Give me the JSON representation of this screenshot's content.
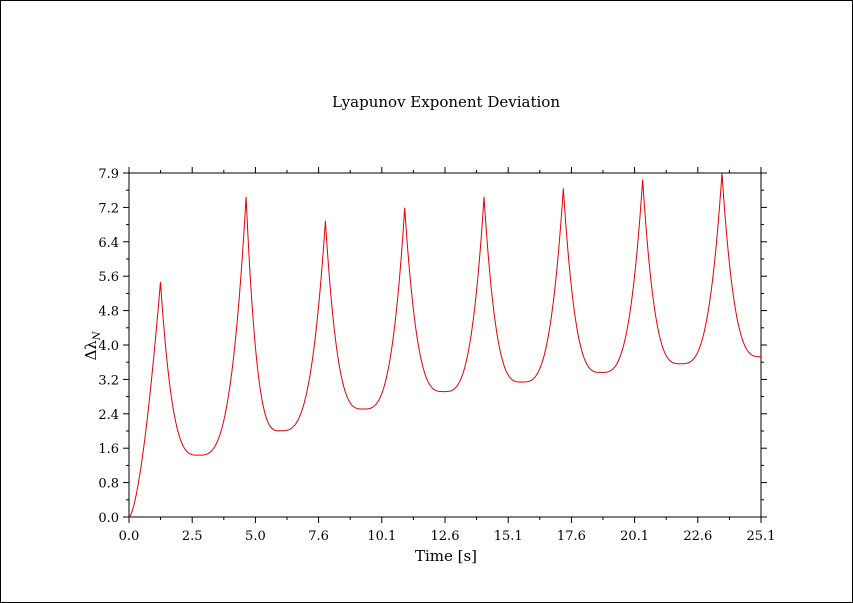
{
  "chart_data": {
    "type": "line",
    "title": "Lyapunov Exponent Deviation",
    "xlabel": "Time [s]",
    "ylabel": "Δλ",
    "ylabel_subscript": "N",
    "xlim": [
      0.0,
      25.1
    ],
    "ylim": [
      0.0,
      7.9
    ],
    "x_ticks": [
      "0.0",
      "2.5",
      "5.0",
      "7.6",
      "10.1",
      "12.6",
      "15.1",
      "17.6",
      "20.1",
      "22.6",
      "25.1"
    ],
    "y_ticks": [
      "0.0",
      "0.8",
      "1.6",
      "2.4",
      "3.2",
      "4.0",
      "4.8",
      "5.6",
      "6.4",
      "7.2",
      "7.9"
    ],
    "grid": false,
    "colors": {
      "series": "#e00000",
      "axes": "#000000",
      "background": "#ffffff"
    },
    "series": [
      {
        "start": [
          0.0,
          0.0
        ],
        "cycles": [
          {
            "peak_x": 1.25,
            "peak_y": 5.4,
            "min_x": 2.75,
            "min_y": 1.42
          },
          {
            "peak_x": 4.65,
            "peak_y": 7.35,
            "min_x": 6.0,
            "min_y": 1.98
          },
          {
            "peak_x": 7.8,
            "peak_y": 6.8,
            "min_x": 9.3,
            "min_y": 2.48
          },
          {
            "peak_x": 10.95,
            "peak_y": 7.1,
            "min_x": 12.5,
            "min_y": 2.88
          },
          {
            "peak_x": 14.1,
            "peak_y": 7.35,
            "min_x": 15.6,
            "min_y": 3.1
          },
          {
            "peak_x": 17.25,
            "peak_y": 7.55,
            "min_x": 18.75,
            "min_y": 3.32
          },
          {
            "peak_x": 20.4,
            "peak_y": 7.75,
            "min_x": 21.9,
            "min_y": 3.52
          },
          {
            "peak_x": 23.55,
            "peak_y": 7.9
          }
        ],
        "end": [
          25.1,
          3.68
        ]
      }
    ]
  }
}
